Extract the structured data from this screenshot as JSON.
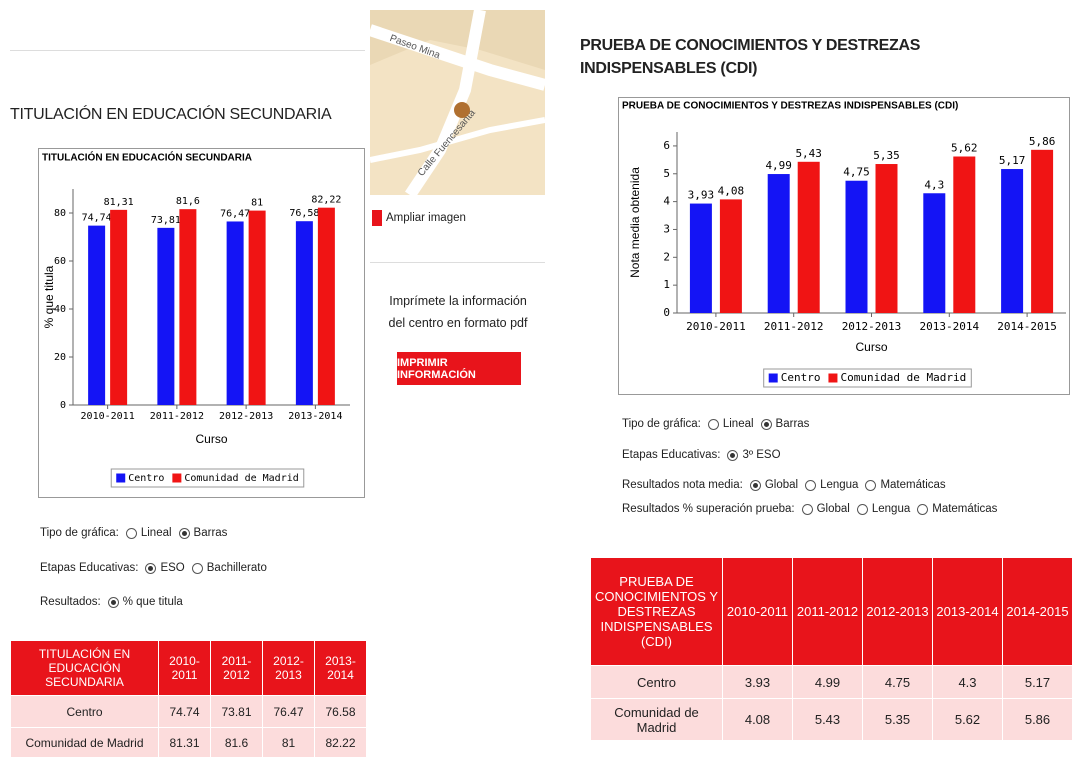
{
  "chart_data": [
    {
      "type": "bar",
      "title": "TITULACIÓN EN EDUCACIÓN SECUNDARIA",
      "categories": [
        "2010-2011",
        "2011-2012",
        "2012-2013",
        "2013-2014"
      ],
      "series": [
        {
          "name": "Centro",
          "color": "#1414f5",
          "values": [
            74.74,
            73.81,
            76.47,
            76.58
          ],
          "value_labels": [
            "74,74",
            "73,81",
            "76,47",
            "76,58"
          ]
        },
        {
          "name": "Comunidad de Madrid",
          "color": "#f01414",
          "values": [
            81.31,
            81.6,
            81,
            82.22
          ],
          "value_labels": [
            "81,31",
            "81,6",
            "81",
            "82,22"
          ]
        }
      ],
      "ylim": [
        0,
        90
      ],
      "yticks": [
        0,
        20,
        40,
        60,
        80
      ],
      "xlabel": "Curso",
      "ylabel": "% que titula",
      "legend": "bottom"
    },
    {
      "type": "bar",
      "title": "PRUEBA DE CONOCIMIENTOS Y DESTREZAS INDISPENSABLES (CDI)",
      "categories": [
        "2010-2011",
        "2011-2012",
        "2012-2013",
        "2013-2014",
        "2014-2015"
      ],
      "series": [
        {
          "name": "Centro",
          "color": "#1414f5",
          "values": [
            3.93,
            4.99,
            4.75,
            4.3,
            5.17
          ],
          "value_labels": [
            "3,93",
            "4,99",
            "4,75",
            "4,3",
            "5,17"
          ]
        },
        {
          "name": "Comunidad de Madrid",
          "color": "#f01414",
          "values": [
            4.08,
            5.43,
            5.35,
            5.62,
            5.86
          ],
          "value_labels": [
            "4,08",
            "5,43",
            "5,35",
            "5,62",
            "5,86"
          ]
        }
      ],
      "ylim": [
        0,
        6.5
      ],
      "yticks": [
        0,
        1,
        2,
        3,
        4,
        5,
        6
      ],
      "xlabel": "Curso",
      "ylabel": "Nota media obtenida",
      "legend": "bottom"
    }
  ],
  "map": {
    "streets": [
      "Paseo Mina",
      "Calle Fuencesanta"
    ],
    "link": "Ampliar imagen"
  },
  "print": {
    "text": "Imprímete la información del centro en formato pdf",
    "button": "IMPRIMIR INFORMACIÓN"
  },
  "sections": [
    {
      "title": "TITULACIÓN EN EDUCACIÓN SECUNDARIA",
      "options": [
        {
          "label": "Tipo de gráfica:",
          "choices": [
            "Lineal",
            "Barras"
          ],
          "selected": 1
        },
        {
          "label": "Etapas Educativas:",
          "choices": [
            "ESO",
            "Bachillerato"
          ],
          "selected": 0
        },
        {
          "label": "Resultados:",
          "choices": [
            "% que titula"
          ],
          "selected": 0
        }
      ],
      "table": {
        "header": [
          "TITULACIÓN EN EDUCACIÓN SECUNDARIA",
          "2010-2011",
          "2011-2012",
          "2012-2013",
          "2013-2014"
        ],
        "rows": [
          [
            "Centro",
            74.74,
            73.81,
            76.47,
            76.58
          ],
          [
            "Comunidad de Madrid",
            81.31,
            81.6,
            81,
            82.22
          ]
        ]
      }
    },
    {
      "title": "PRUEBA DE CONOCIMIENTOS Y DESTREZAS INDISPENSABLES (CDI)",
      "options": [
        {
          "label": "Tipo de gráfica:",
          "choices": [
            "Lineal",
            "Barras"
          ],
          "selected": 1
        },
        {
          "label": "Etapas Educativas:",
          "choices": [
            "3º ESO"
          ],
          "selected": 0
        },
        {
          "label": "Resultados nota media:",
          "choices": [
            "Global",
            "Lengua",
            "Matemáticas"
          ],
          "selected": 0
        },
        {
          "label": "Resultados % superación prueba:",
          "choices": [
            "Global",
            "Lengua",
            "Matemáticas"
          ],
          "selected": null
        }
      ],
      "table": {
        "header": [
          "PRUEBA DE CONOCIMIENTOS Y DESTREZAS INDISPENSABLES (CDI)",
          "2010-2011",
          "2011-2012",
          "2012-2013",
          "2013-2014",
          "2014-2015"
        ],
        "rows": [
          [
            "Centro",
            3.93,
            4.99,
            4.75,
            4.3,
            5.17
          ],
          [
            "Comunidad de Madrid",
            4.08,
            5.43,
            5.35,
            5.62,
            5.86
          ]
        ]
      }
    }
  ]
}
